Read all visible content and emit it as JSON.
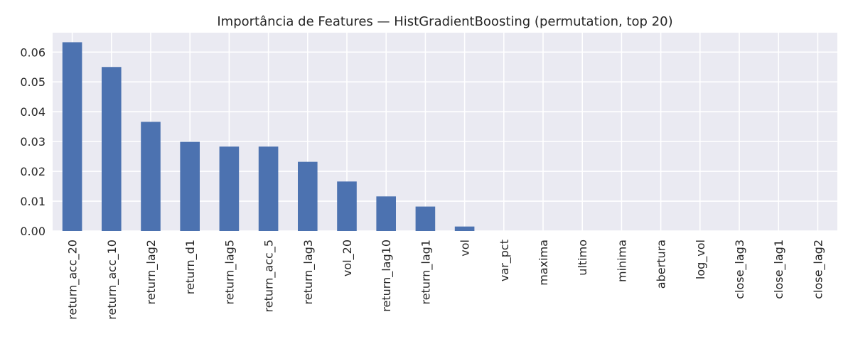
{
  "chart_data": {
    "type": "bar",
    "title": "Importância de Features — HistGradientBoosting (permutation, top 20)",
    "xlabel": "",
    "ylabel": "",
    "categories": [
      "return_acc_20",
      "return_acc_10",
      "return_lag2",
      "return_d1",
      "return_lag5",
      "return_acc_5",
      "return_lag3",
      "vol_20",
      "return_lag10",
      "return_lag1",
      "vol",
      "var_pct",
      "maxima",
      "ultimo",
      "minima",
      "abertura",
      "log_vol",
      "close_lag3",
      "close_lag1",
      "close_lag2"
    ],
    "values": [
      0.0633,
      0.055,
      0.0366,
      0.0299,
      0.0283,
      0.0283,
      0.0232,
      0.0166,
      0.0116,
      0.0082,
      0.0015,
      0,
      0,
      0,
      0,
      0,
      0,
      0,
      0,
      0
    ],
    "ylim": [
      0,
      0.0665
    ],
    "yticks": [
      0.0,
      0.01,
      0.02,
      0.03,
      0.04,
      0.05,
      0.06
    ],
    "ytick_labels": [
      "0.00",
      "0.01",
      "0.02",
      "0.03",
      "0.04",
      "0.05",
      "0.06"
    ],
    "grid": true,
    "colors": {
      "bar": "#4c72b0",
      "plot_bg": "#eaeaf2",
      "grid": "#ffffff"
    }
  }
}
